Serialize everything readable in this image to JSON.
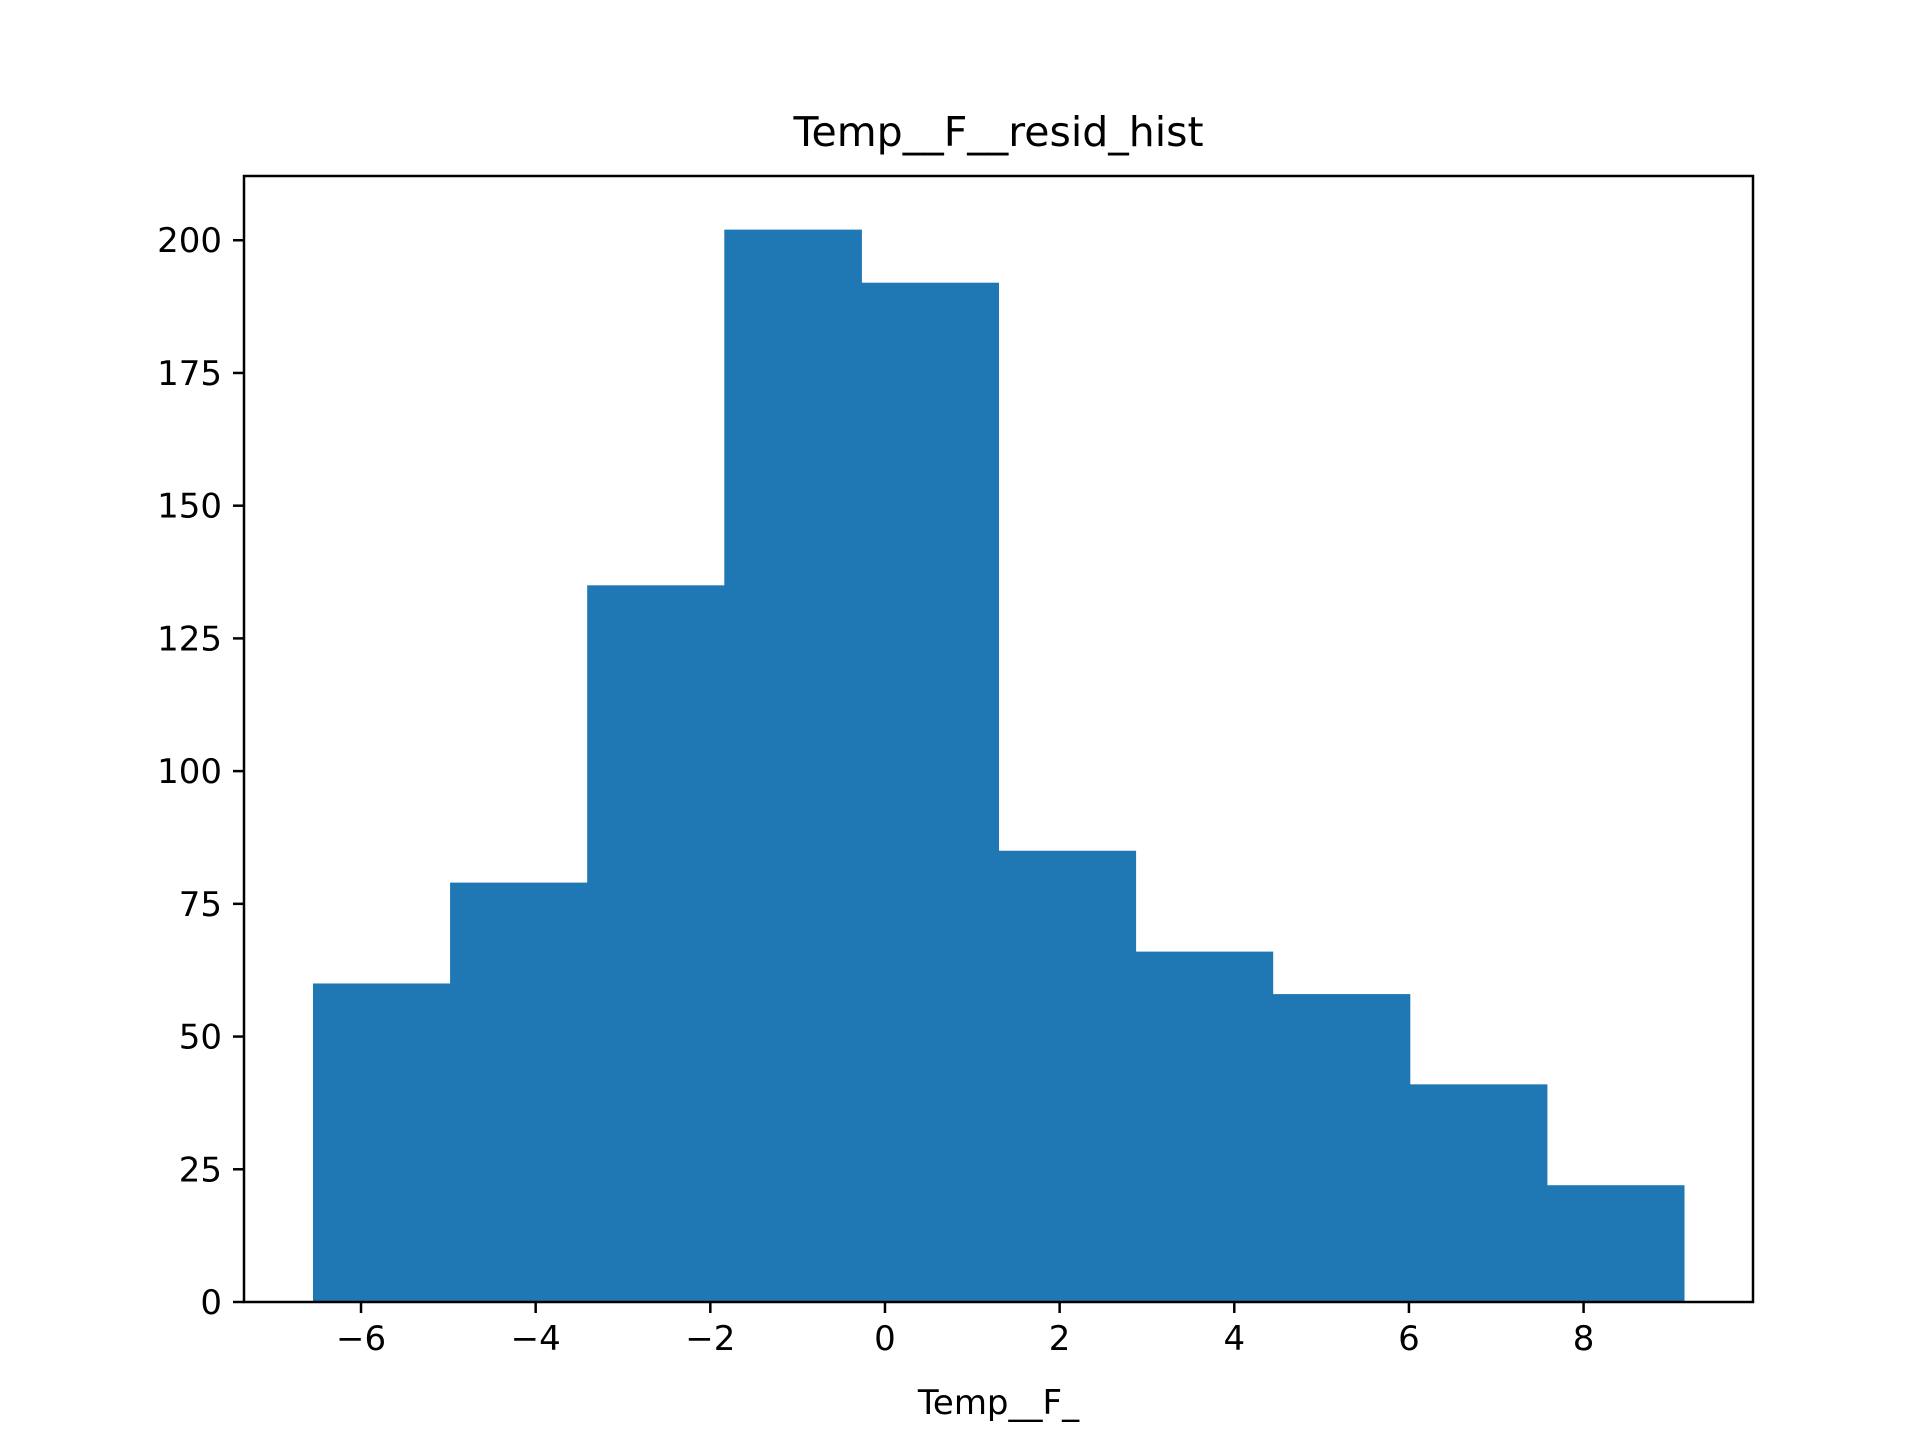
{
  "chart_data": {
    "type": "bar",
    "title": "Temp__F__resid_hist",
    "xlabel": "Temp__F_",
    "ylabel": "",
    "bin_edges": [
      -6.55,
      -4.98,
      -3.41,
      -1.84,
      -0.27,
      1.3,
      2.87,
      4.44,
      6.01,
      7.58,
      9.15
    ],
    "values": [
      60,
      79,
      135,
      202,
      192,
      85,
      66,
      58,
      41,
      22
    ],
    "xlim": [
      -7.34,
      9.94
    ],
    "ylim": [
      0,
      212.1
    ],
    "xticks": [
      -6,
      -4,
      -2,
      0,
      2,
      4,
      6,
      8
    ],
    "xtick_labels": [
      "−6",
      "−4",
      "−2",
      "0",
      "2",
      "4",
      "6",
      "8"
    ],
    "yticks": [
      0,
      25,
      50,
      75,
      100,
      125,
      150,
      175,
      200
    ],
    "ytick_labels": [
      "0",
      "25",
      "50",
      "75",
      "100",
      "125",
      "150",
      "175",
      "200"
    ],
    "bar_color": "#1f77b4",
    "grid": false,
    "legend": "none"
  }
}
